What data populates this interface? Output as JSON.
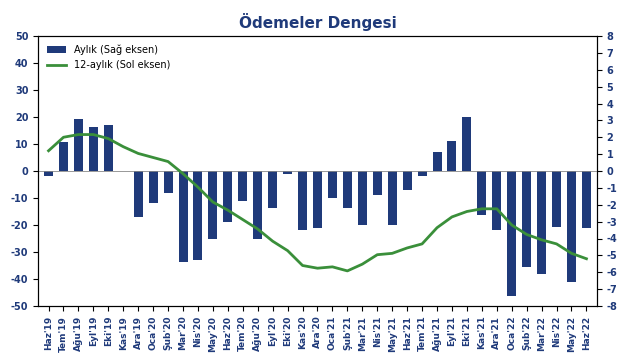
{
  "chart_data": {
    "type": "bar",
    "title": "Ödemeler Dengesi",
    "categories": [
      "Haz'19",
      "Tem'19",
      "Ağu'19",
      "Eyl'19",
      "Eki'19",
      "Kas'19",
      "Ara'19",
      "Oca'20",
      "Şub'20",
      "Mar'20",
      "Nis'20",
      "May'20",
      "Haz'20",
      "Tem'20",
      "Ağu'20",
      "Eyl'20",
      "Eki'20",
      "Kas'20",
      "Ara'20",
      "Oca'21",
      "Şub'21",
      "Mar'21",
      "Nis'21",
      "May'21",
      "Haz'21",
      "Tem'21",
      "Ağu'21",
      "Eyl'21",
      "Eki'21",
      "Kas'21",
      "Ara'21",
      "Oca'22",
      "Şub'22",
      "Mar'22",
      "Nis'22",
      "May'22",
      "Haz'22"
    ],
    "series": [
      {
        "name": "Aylık (Sağ eksen)",
        "type": "bar",
        "axis": "y2",
        "color": "#1f3a7a",
        "values": [
          -0.3,
          1.7,
          3.1,
          2.6,
          2.7,
          0.0,
          -2.7,
          -1.9,
          -1.3,
          -5.4,
          -5.3,
          -4.0,
          -3.0,
          -1.8,
          -4.0,
          -2.2,
          -0.2,
          -3.5,
          -3.4,
          -1.6,
          -2.2,
          -3.2,
          -1.4,
          -3.2,
          -1.1,
          -0.3,
          1.1,
          1.8,
          3.2,
          -2.6,
          -3.5,
          -7.4,
          -5.7,
          -6.1,
          -3.3,
          -6.6,
          -3.4
        ]
      },
      {
        "name": "12-aylık (Sol eksen)",
        "type": "line",
        "color": "#3a8f3a",
        "line_style": "solid",
        "values": [
          7.5,
          12.5,
          13.5,
          13.5,
          12,
          9,
          6.5,
          5,
          3.5,
          -1,
          -6,
          -11.5,
          -14.5,
          -18,
          -21.5,
          -26,
          -29.5,
          -35,
          -36,
          -35.5,
          -37,
          -34.5,
          -31,
          -30.5,
          -28.5,
          -27,
          -21,
          -17,
          -15,
          -14,
          -14,
          -20,
          -23.5,
          -25.5,
          -27,
          -30.5,
          -32.5
        ]
      }
    ],
    "ylim": [
      -50,
      50
    ],
    "yticks": [
      -50,
      -40,
      -30,
      -20,
      -10,
      0,
      10,
      20,
      30,
      40,
      50
    ],
    "y2lim": [
      -8,
      8
    ],
    "y2ticks": [
      -8,
      -7,
      -6,
      -5,
      -4,
      -3,
      -2,
      -1,
      0,
      1,
      2,
      3,
      4,
      5,
      6,
      7,
      8
    ],
    "grid": false,
    "legend": "upper left"
  }
}
